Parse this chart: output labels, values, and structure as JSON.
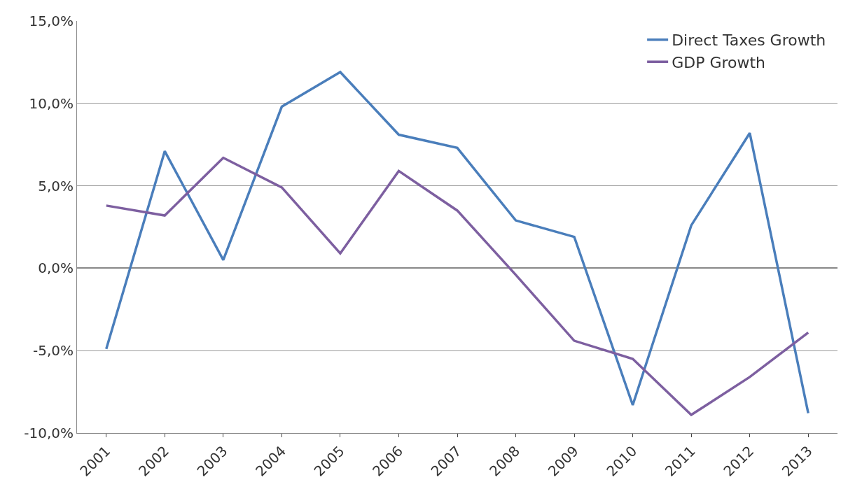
{
  "chart_data": {
    "type": "line",
    "categories": [
      "2001",
      "2002",
      "2003",
      "2004",
      "2005",
      "2006",
      "2007",
      "2008",
      "2009",
      "2010",
      "2011",
      "2012",
      "2013"
    ],
    "series": [
      {
        "name": "Direct Taxes Growth",
        "color": "#4a7ebb",
        "values": [
          -4.9,
          7.1,
          0.5,
          9.8,
          11.9,
          8.1,
          7.3,
          2.9,
          1.9,
          -8.3,
          2.6,
          8.2,
          -8.8
        ]
      },
      {
        "name": "GDP Growth",
        "color": "#7d5fa0",
        "values": [
          3.8,
          3.2,
          6.7,
          4.9,
          0.9,
          5.9,
          3.5,
          -0.4,
          -4.4,
          -5.5,
          -8.9,
          -6.6,
          -3.9
        ]
      }
    ],
    "ylim": [
      -10,
      15
    ],
    "yticks": [
      {
        "value": -10,
        "label": "-10,0%"
      },
      {
        "value": -5,
        "label": "-5,0%"
      },
      {
        "value": 0,
        "label": "0,0%"
      },
      {
        "value": 5,
        "label": "5,0%"
      },
      {
        "value": 10,
        "label": "10,0%"
      },
      {
        "value": 15,
        "label": "15,0%"
      }
    ],
    "grid": "y",
    "legend": "top right",
    "marker": "none",
    "line_style": "solid"
  }
}
